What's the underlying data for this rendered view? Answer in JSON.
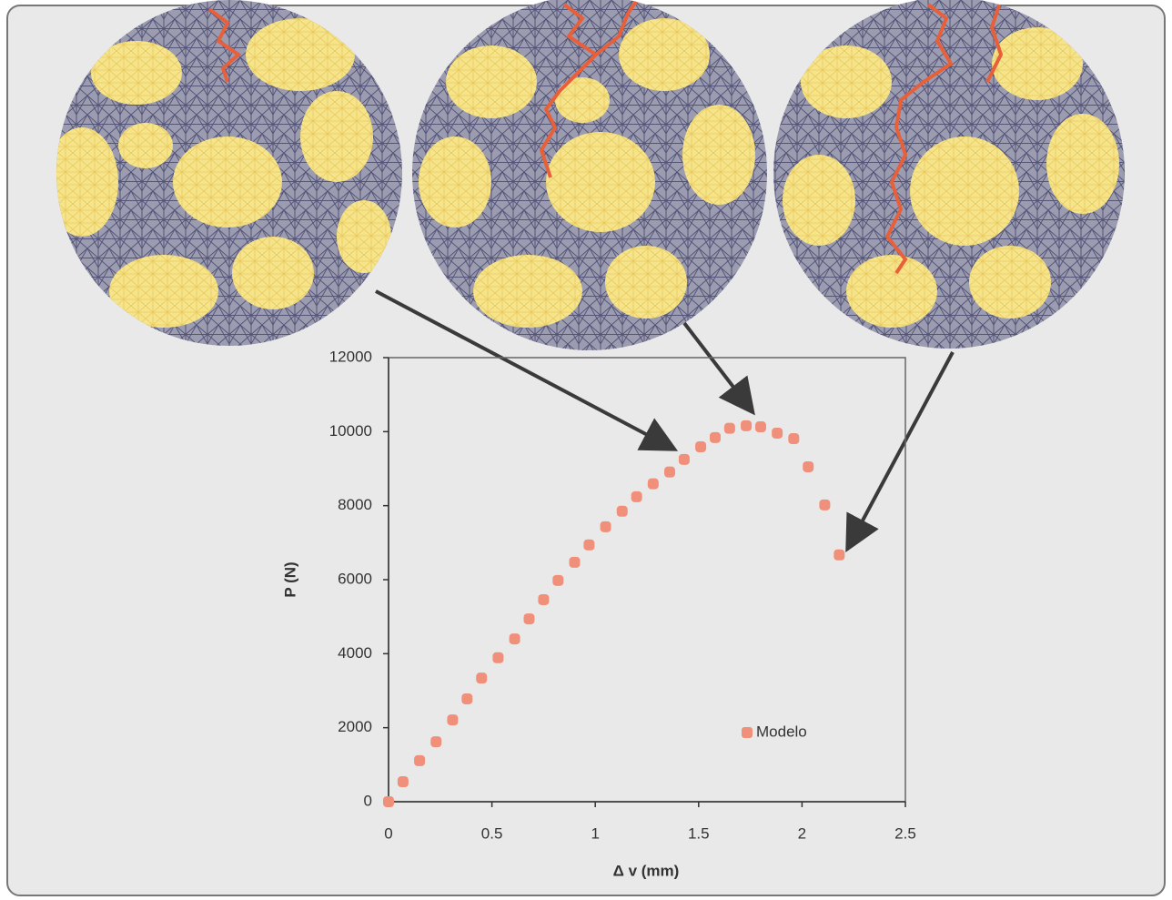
{
  "chart_data": {
    "type": "scatter",
    "xlabel": "Δ v (mm)",
    "ylabel": "P (N)",
    "x": [
      0,
      0.07,
      0.15,
      0.23,
      0.31,
      0.38,
      0.45,
      0.53,
      0.61,
      0.68,
      0.75,
      0.82,
      0.9,
      0.97,
      1.05,
      1.13,
      1.2,
      1.28,
      1.36,
      1.43,
      1.51,
      1.58,
      1.65,
      1.73,
      1.8,
      1.88,
      1.96,
      2.03,
      2.11,
      2.18
    ],
    "series": [
      {
        "name": "Modelo",
        "color": "#f0907a",
        "values": [
          0,
          540,
          1110,
          1620,
          2210,
          2780,
          3340,
          3890,
          4400,
          4940,
          5460,
          5980,
          6470,
          6940,
          7430,
          7850,
          8240,
          8590,
          8910,
          9250,
          9590,
          9840,
          10090,
          10160,
          10130,
          9960,
          9810,
          9050,
          8020,
          6670
        ]
      }
    ],
    "xlim": [
      0,
      2.5
    ],
    "ylim": [
      0,
      12000
    ],
    "xticks": [
      0,
      0.5,
      1,
      1.5,
      2,
      2.5
    ],
    "yticks": [
      0,
      2000,
      4000,
      6000,
      8000,
      10000,
      12000
    ],
    "grid": false,
    "legend": "lower right"
  }
}
